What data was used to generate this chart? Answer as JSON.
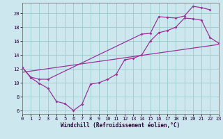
{
  "xlabel": "Windchill (Refroidissement éolien,°C)",
  "bg_color": "#cce8ee",
  "line_color": "#993399",
  "grid_color": "#99cccc",
  "xlim": [
    0,
    23
  ],
  "ylim": [
    5.5,
    21.5
  ],
  "yticks": [
    6,
    8,
    10,
    12,
    14,
    16,
    18,
    20
  ],
  "xticks": [
    0,
    1,
    2,
    3,
    4,
    5,
    6,
    7,
    8,
    9,
    10,
    11,
    12,
    13,
    14,
    15,
    16,
    17,
    18,
    19,
    20,
    21,
    22,
    23
  ],
  "series1_x": [
    0,
    1,
    2,
    3,
    4,
    5,
    6,
    7,
    8,
    9,
    10,
    11,
    12,
    13,
    14,
    15,
    16,
    17,
    18,
    19,
    20,
    21,
    22,
    23
  ],
  "series1_y": [
    12.2,
    10.7,
    9.9,
    9.2,
    7.3,
    7.0,
    6.0,
    6.9,
    9.8,
    10.0,
    10.5,
    11.2,
    13.3,
    13.5,
    14.0,
    16.0,
    17.2,
    17.5,
    18.0,
    19.3,
    19.2,
    19.0,
    16.5,
    15.7
  ],
  "series2_x": [
    0,
    1,
    2,
    3,
    14,
    15,
    16,
    17,
    18,
    19,
    20,
    21,
    22
  ],
  "series2_y": [
    12.2,
    10.8,
    10.5,
    10.5,
    17.0,
    17.1,
    19.5,
    19.4,
    19.3,
    19.6,
    21.0,
    20.8,
    20.5
  ],
  "series3_x": [
    0,
    23
  ],
  "series3_y": [
    11.5,
    15.5
  ]
}
